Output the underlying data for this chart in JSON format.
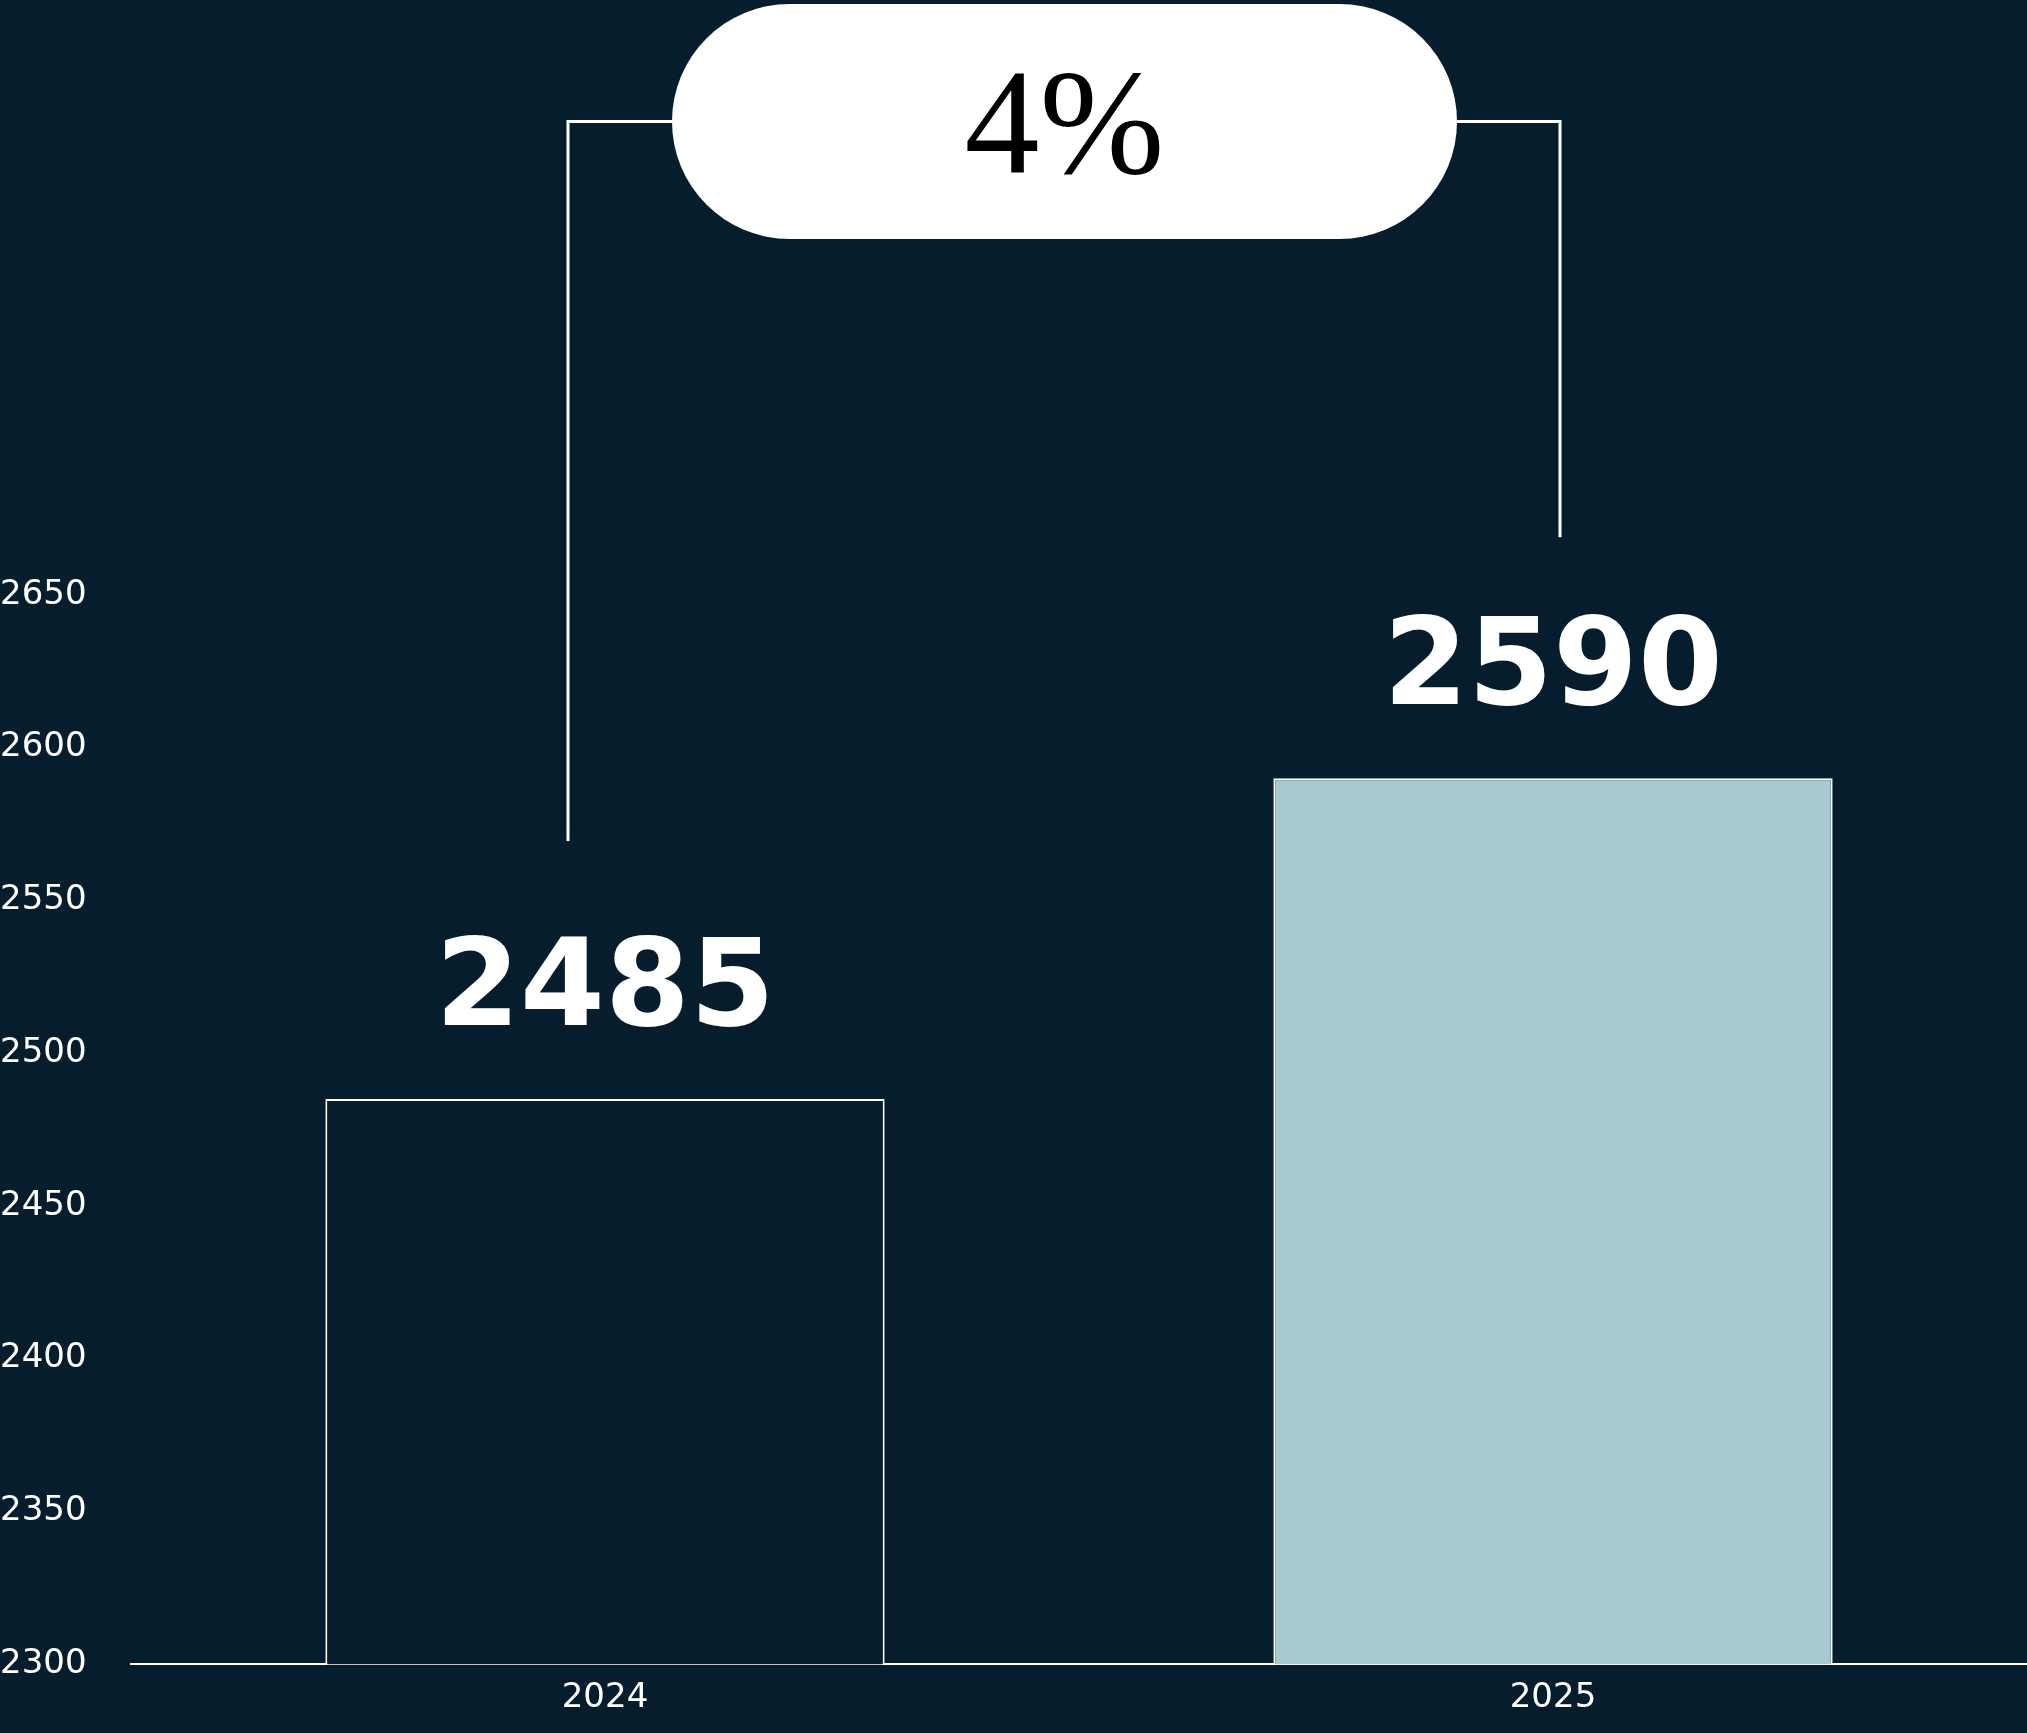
{
  "chart_data": {
    "type": "bar",
    "categories": [
      "2024",
      "2025"
    ],
    "values": [
      2485,
      2590
    ],
    "colors": [
      "#061d2e",
      "#a8c9d2"
    ],
    "ylim": [
      2300,
      2838
    ],
    "yticks": [
      2300,
      2350,
      2400,
      2450,
      2500,
      2550,
      2600,
      2650
    ],
    "grid": false,
    "legend": false,
    "data_labels": true,
    "annotations": [
      "4%"
    ]
  }
}
